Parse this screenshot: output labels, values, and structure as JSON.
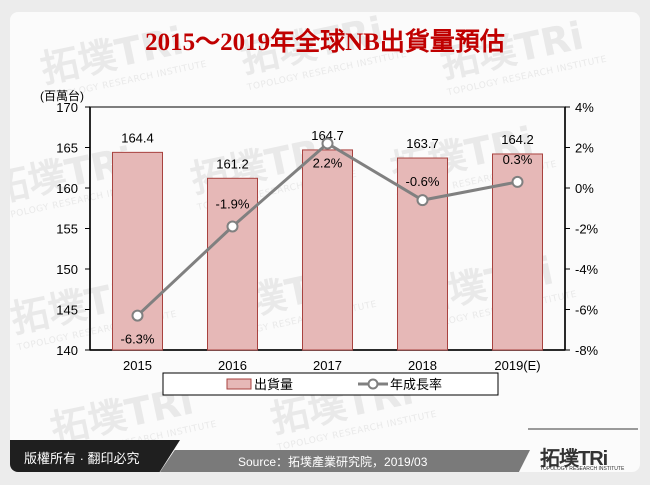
{
  "title": "2015～2019年全球NB出貨量預估",
  "unit_label": "(百萬台)",
  "footer": {
    "copyright": "版權所有 · 翻印必究",
    "source": "Source：拓墣產業研究院，2019/03",
    "logo_zh": "拓墣TRi",
    "logo_en": "TOPOLOGY RESEARCH INSTITUTE"
  },
  "legend": {
    "bar_label": "出貨量",
    "line_label": "年成長率"
  },
  "colors": {
    "title": "#c00000",
    "bar_fill": "#e6b8b7",
    "bar_stroke": "#a8423f",
    "line": "#808080"
  },
  "chart_data": {
    "type": "bar+line",
    "title": "2015～2019年全球NB出貨量預估",
    "categories": [
      "2015",
      "2016",
      "2017",
      "2018",
      "2019(E)"
    ],
    "series": [
      {
        "name": "出貨量",
        "type": "bar",
        "axis": "left",
        "values": [
          164.4,
          161.2,
          164.7,
          163.7,
          164.2
        ],
        "labels": [
          "164.4",
          "161.2",
          "164.7",
          "163.7",
          "164.2"
        ]
      },
      {
        "name": "年成長率",
        "type": "line",
        "axis": "right",
        "values": [
          -6.3,
          -1.9,
          2.2,
          -0.6,
          0.3
        ],
        "labels": [
          "-6.3%",
          "-1.9%",
          "2.2%",
          "-0.6%",
          "0.3%"
        ]
      }
    ],
    "ylabel": "(百萬台)",
    "ylim": [
      140,
      170
    ],
    "yticks": [
      "170",
      "165",
      "160",
      "155",
      "150",
      "145",
      "140"
    ],
    "y2lim": [
      -8,
      4
    ],
    "y2ticks": [
      "4%",
      "2%",
      "0%",
      "-2%",
      "-4%",
      "-6%",
      "-8%"
    ],
    "legend_position": "bottom",
    "grid": false
  }
}
